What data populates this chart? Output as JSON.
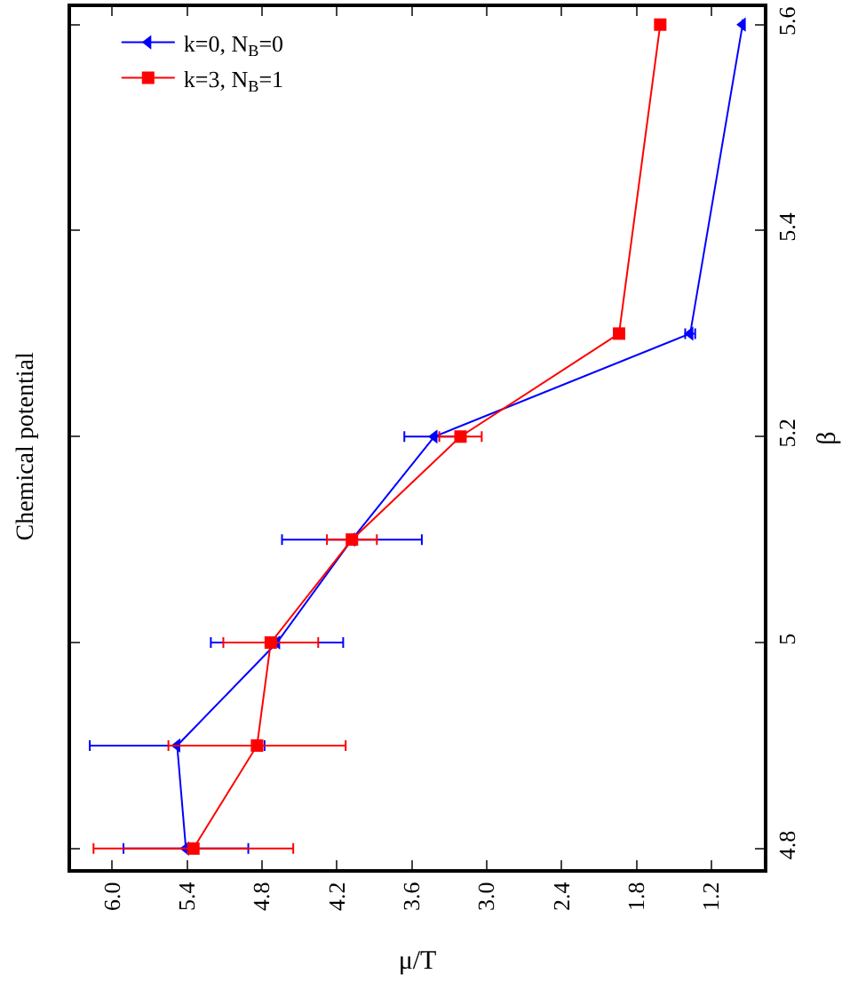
{
  "chart_data": {
    "type": "line",
    "title": "Chemical potential",
    "xlabel": "μ/T",
    "ylabel": "β",
    "series": [
      {
        "name": "k=0, N$_{B}$=0",
        "color": "#0000ff",
        "marker": "triangle",
        "x": [
          5.41,
          5.48,
          4.68,
          4.08,
          3.42,
          1.37,
          0.95
        ],
        "values": [
          4.8,
          4.9,
          5.0,
          5.1,
          5.2,
          5.3,
          5.6
        ],
        "xerrors": [
          0.5,
          0.7,
          0.53,
          0.56,
          0.24,
          0.04,
          null
        ]
      },
      {
        "name": "k=3, N$_{B}$=1",
        "color": "#ff0000",
        "marker": "square",
        "x": [
          5.35,
          4.84,
          4.73,
          4.08,
          3.21,
          1.94,
          1.61
        ],
        "values": [
          4.8,
          4.9,
          5.0,
          5.1,
          5.2,
          5.3,
          5.6
        ],
        "xerrors": [
          0.8,
          0.71,
          0.38,
          0.2,
          0.17,
          null,
          null
        ]
      }
    ],
    "xlim": [
      6.33,
      0.78
    ],
    "xticks": [
      {
        "value": 6.0,
        "label": "6.0"
      },
      5.4,
      4.8,
      4.2,
      3.6,
      {
        "value": 3.0,
        "label": "3.0"
      },
      2.4,
      1.8,
      1.2
    ],
    "ylim": [
      4.78,
      5.617
    ],
    "yticks": [
      4.8,
      5,
      5.2,
      5.4,
      5.6
    ],
    "grid": false,
    "legend": "top left",
    "line_style": "solid"
  }
}
